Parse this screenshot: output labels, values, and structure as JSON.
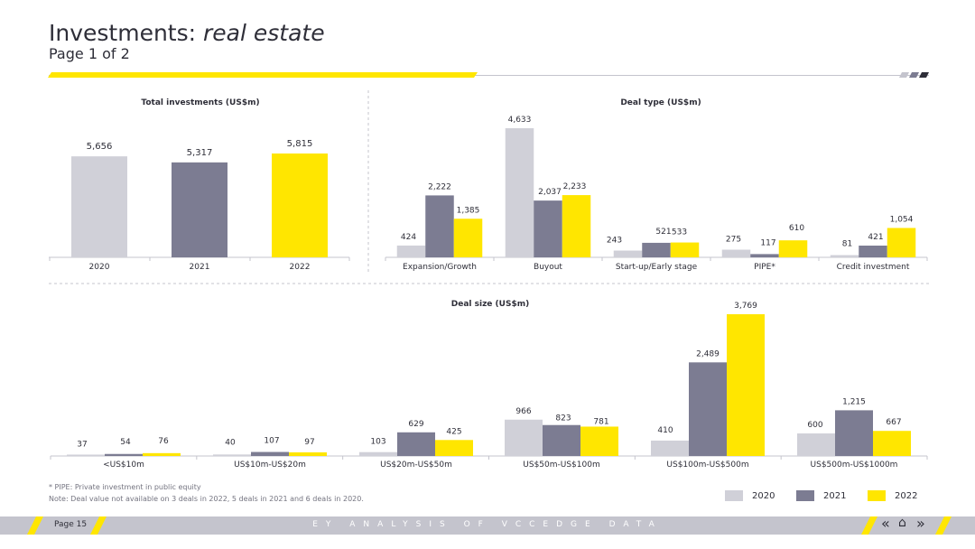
{
  "header": {
    "title_main": "Investments: ",
    "title_italic": "real estate",
    "subtitle": "Page 1 of 2"
  },
  "colors": {
    "c2020": "#d0d0d8",
    "c2021": "#7c7c92",
    "c2022": "#ffe600",
    "text": "#2e2e38",
    "axis": "#c4c4cd"
  },
  "legend": [
    "2020",
    "2021",
    "2022"
  ],
  "notes": {
    "pipe": "* PIPE: Private investment in public equity",
    "note": "Note: Deal value not available on 3 deals in 2022, 5 deals in 2021 and 6 deals in 2020."
  },
  "footer": {
    "page": "Page 15",
    "source": "EY ANALYSIS OF VCCEDGE DATA"
  },
  "chart_data": [
    {
      "type": "bar",
      "title": "Total investments (US$m)",
      "categories": [
        "2020",
        "2021",
        "2022"
      ],
      "values": [
        5656,
        5317,
        5815
      ],
      "labels": [
        "5,656",
        "5,317",
        "5,815"
      ],
      "ylim": [
        0,
        6500
      ]
    },
    {
      "type": "bar",
      "title": "Deal type (US$m)",
      "categories": [
        "Expansion/Growth",
        "Buyout",
        "Start-up/Early stage",
        "PIPE*",
        "Credit investment"
      ],
      "series": [
        {
          "name": "2020",
          "values": [
            424,
            4633,
            243,
            275,
            81
          ],
          "labels": [
            "424",
            "4,633",
            "243",
            "275",
            "81"
          ]
        },
        {
          "name": "2021",
          "values": [
            2222,
            2037,
            521,
            117,
            421
          ],
          "labels": [
            "2,222",
            "2,037",
            "521",
            "117",
            "421"
          ]
        },
        {
          "name": "2022",
          "values": [
            1385,
            2233,
            533,
            610,
            1054
          ],
          "labels": [
            "1,385",
            "2,233",
            "533",
            "610",
            "1,054"
          ]
        }
      ],
      "ylim": [
        0,
        5200
      ]
    },
    {
      "type": "bar",
      "title": "Deal size (US$m)",
      "categories": [
        "<US$10m",
        "US$10m-US$20m",
        "US$20m-US$50m",
        "US$50m-US$100m",
        "US$100m-US$500m",
        "US$500m-US$1000m"
      ],
      "series": [
        {
          "name": "2020",
          "values": [
            37,
            40,
            103,
            966,
            410,
            600
          ],
          "labels": [
            "37",
            "40",
            "103",
            "966",
            "410",
            "600"
          ]
        },
        {
          "name": "2021",
          "values": [
            54,
            107,
            629,
            823,
            2489,
            1215
          ],
          "labels": [
            "54",
            "107",
            "629",
            "823",
            "2,489",
            "1,215"
          ]
        },
        {
          "name": "2022",
          "values": [
            76,
            97,
            425,
            781,
            3769,
            667
          ],
          "labels": [
            "76",
            "97",
            "425",
            "781",
            "3,769",
            "667"
          ]
        }
      ],
      "ylim": [
        0,
        3900
      ]
    }
  ]
}
